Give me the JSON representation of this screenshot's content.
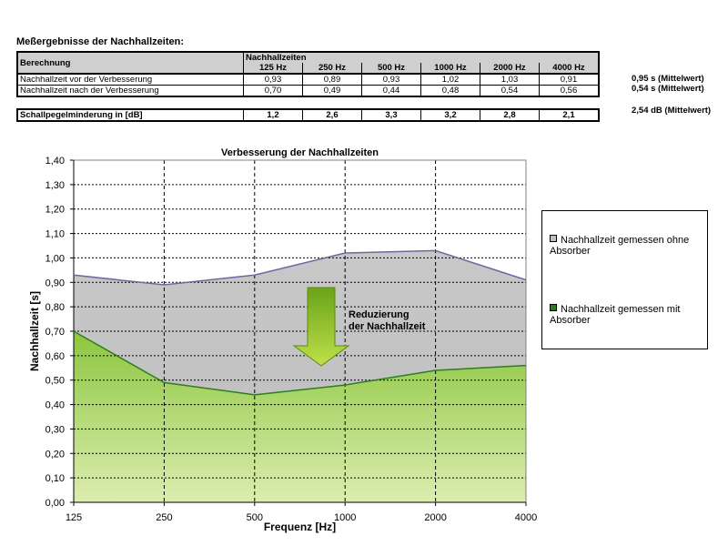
{
  "table": {
    "title": "Meßergebnisse der Nachhallzeiten:",
    "header_row_label": "Berechnung",
    "header_group": "Nachhallzeiten",
    "frequencies": [
      "125 Hz",
      "250 Hz",
      "500 Hz",
      "1000 Hz",
      "2000 Hz",
      "4000 Hz"
    ],
    "rows": [
      {
        "label": "Nachhallzeit vor der Verbesserung",
        "values": [
          "0,93",
          "0,89",
          "0,93",
          "1,02",
          "1,03",
          "0,91"
        ],
        "mean": "0,95 s (Mittelwert)"
      },
      {
        "label": "Nachhallzeit nach der Verbesserung",
        "values": [
          "0,70",
          "0,49",
          "0,44",
          "0,48",
          "0,54",
          "0,56"
        ],
        "mean": "0,54 s (Mittelwert)"
      }
    ],
    "reduction": {
      "label": "Schallpegelminderung in [dB]",
      "values": [
        "1,2",
        "2,6",
        "3,3",
        "3,2",
        "2,8",
        "2,1"
      ],
      "mean": "2,54 dB (Mittelwert)"
    }
  },
  "chart_data": {
    "type": "area",
    "title": "Verbesserung der Nachhallzeiten",
    "xlabel": "Frequenz [Hz]",
    "ylabel": "Nachhallzeit [s]",
    "categories": [
      "125",
      "250",
      "500",
      "1000",
      "2000",
      "4000"
    ],
    "ylim": [
      0,
      1.4
    ],
    "ytick_step": 0.1,
    "ytick_labels": [
      "0,00",
      "0,10",
      "0,20",
      "0,30",
      "0,40",
      "0,50",
      "0,60",
      "0,70",
      "0,80",
      "0,90",
      "1,00",
      "1,10",
      "1,20",
      "1,30",
      "1,40"
    ],
    "grid": true,
    "legend_position": "right",
    "series": [
      {
        "name": "Nachhallzeit gemessen ohne Absorber",
        "values": [
          0.93,
          0.89,
          0.93,
          1.02,
          1.03,
          0.91
        ],
        "fill": "#c0c0c0",
        "line": "#6a6aa0"
      },
      {
        "name": "Nachhallzeit gemessen mit Absorber",
        "values": [
          0.7,
          0.49,
          0.44,
          0.48,
          0.54,
          0.56
        ],
        "fill": "#8cc63f",
        "line": "#2e7d1e"
      }
    ],
    "annotation": {
      "line1": "Reduzierung",
      "line2": "der Nachhallzeit"
    },
    "arrow_color": "#8ec21e"
  }
}
